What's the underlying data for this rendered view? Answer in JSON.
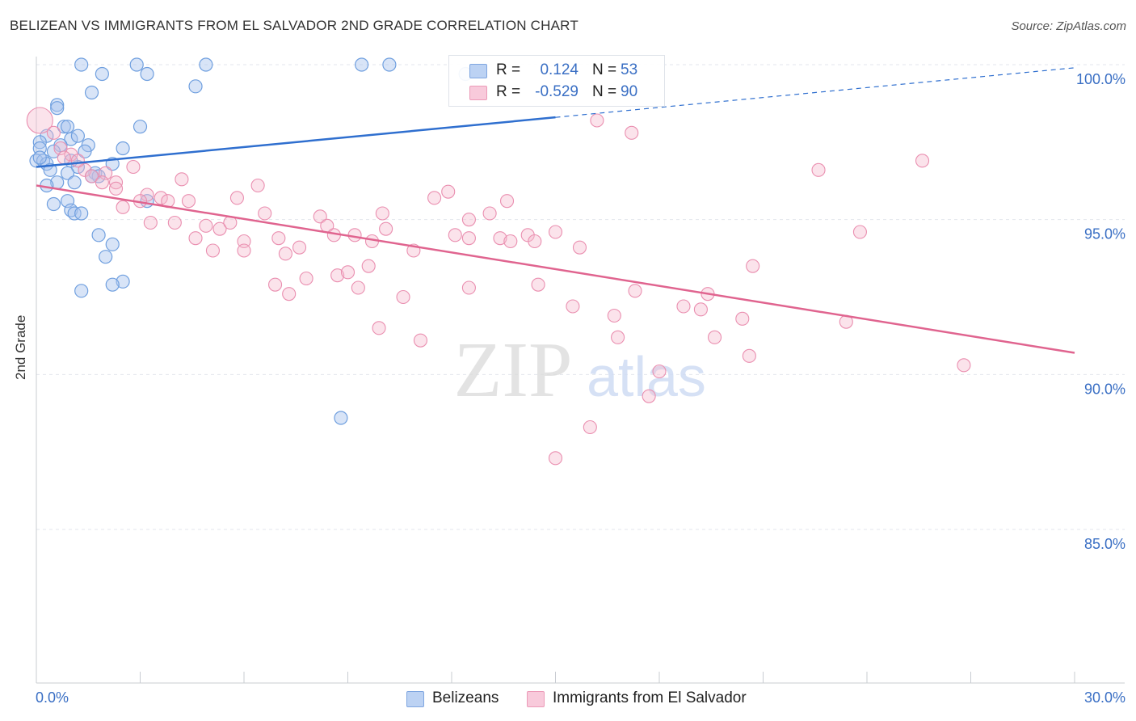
{
  "title": "BELIZEAN VS IMMIGRANTS FROM EL SALVADOR 2ND GRADE CORRELATION CHART",
  "source": "Source: ZipAtlas.com",
  "watermark": {
    "zip": "ZIP",
    "atlas": "atlas"
  },
  "legend": {
    "rows": [
      {
        "r_label": "R =",
        "r_value": "0.124",
        "n_label": "N =",
        "n_value": "53",
        "color": "#a9c4ee"
      },
      {
        "r_label": "R =",
        "r_value": "-0.529",
        "n_label": "N =",
        "n_value": "90",
        "color": "#f5b9cd"
      }
    ]
  },
  "bottom_legend": [
    {
      "label": "Belizeans",
      "color": "#a9c4ee"
    },
    {
      "label": "Immigrants from El Salvador",
      "color": "#f5b9cd"
    }
  ],
  "chart_data": {
    "type": "scatter",
    "title": "BELIZEAN VS IMMIGRANTS FROM EL SALVADOR 2ND GRADE CORRELATION CHART",
    "xlabel": "",
    "ylabel": "2nd Grade",
    "xlim": [
      0,
      30
    ],
    "ylim": [
      80.3,
      100.6
    ],
    "x_tick_labels": [
      "0.0%",
      "30.0%"
    ],
    "y_ticks": [
      85,
      90,
      95,
      100
    ],
    "y_tick_labels": [
      "85.0%",
      "90.0%",
      "95.0%",
      "100.0%"
    ],
    "grid": true,
    "colors": {
      "blue": "#6f9fdf",
      "blue_line": "#2f6fcf",
      "pink": "#ea8fb0",
      "pink_line": "#e0648f",
      "tick_label": "#3a6fc4"
    },
    "series": [
      {
        "name": "Belizeans",
        "trend": {
          "x0": 0.0,
          "y0": 96.7,
          "x1": 15.0,
          "y1": 98.3,
          "dashed_to_x": 30.0,
          "dashed_to_y": 99.9
        },
        "points": [
          [
            1.3,
            100.0
          ],
          [
            1.9,
            99.7
          ],
          [
            2.9,
            100.0
          ],
          [
            4.9,
            100.0
          ],
          [
            3.2,
            99.7
          ],
          [
            9.4,
            100.0
          ],
          [
            10.2,
            100.0
          ],
          [
            12.4,
            99.7
          ],
          [
            4.6,
            99.3
          ],
          [
            1.6,
            99.1
          ],
          [
            0.6,
            98.7
          ],
          [
            0.6,
            98.6
          ],
          [
            0.8,
            98.0
          ],
          [
            0.9,
            98.0
          ],
          [
            3.0,
            98.0
          ],
          [
            0.3,
            97.7
          ],
          [
            1.0,
            97.6
          ],
          [
            1.2,
            97.7
          ],
          [
            0.1,
            97.5
          ],
          [
            0.7,
            97.4
          ],
          [
            1.5,
            97.4
          ],
          [
            2.5,
            97.3
          ],
          [
            0.1,
            97.3
          ],
          [
            1.4,
            97.2
          ],
          [
            0.0,
            96.9
          ],
          [
            0.2,
            96.9
          ],
          [
            0.3,
            96.8
          ],
          [
            2.2,
            96.8
          ],
          [
            1.2,
            96.7
          ],
          [
            0.4,
            96.6
          ],
          [
            0.9,
            96.5
          ],
          [
            1.7,
            96.5
          ],
          [
            1.8,
            96.4
          ],
          [
            1.6,
            96.4
          ],
          [
            1.1,
            96.2
          ],
          [
            0.6,
            96.2
          ],
          [
            0.3,
            96.1
          ],
          [
            3.2,
            95.6
          ],
          [
            0.9,
            95.6
          ],
          [
            0.5,
            95.5
          ],
          [
            1.0,
            95.3
          ],
          [
            1.1,
            95.2
          ],
          [
            1.3,
            95.2
          ],
          [
            1.8,
            94.5
          ],
          [
            2.2,
            94.2
          ],
          [
            2.0,
            93.8
          ],
          [
            2.5,
            93.0
          ],
          [
            2.2,
            92.9
          ],
          [
            1.3,
            92.7
          ],
          [
            8.8,
            88.6
          ],
          [
            0.1,
            97.0
          ],
          [
            0.5,
            97.2
          ],
          [
            1.0,
            96.9
          ]
        ]
      },
      {
        "name": "Immigrants from El Salvador",
        "trend": {
          "x0": 0.0,
          "y0": 96.1,
          "x1": 30.0,
          "y1": 90.7
        },
        "points": [
          [
            0.1,
            98.2
          ],
          [
            0.5,
            97.8
          ],
          [
            1.0,
            97.1
          ],
          [
            0.7,
            97.3
          ],
          [
            1.4,
            96.6
          ],
          [
            1.6,
            96.4
          ],
          [
            2.0,
            96.5
          ],
          [
            2.8,
            96.7
          ],
          [
            1.9,
            96.2
          ],
          [
            2.3,
            96.2
          ],
          [
            4.2,
            96.3
          ],
          [
            6.4,
            96.1
          ],
          [
            3.2,
            95.8
          ],
          [
            3.6,
            95.7
          ],
          [
            3.8,
            95.6
          ],
          [
            4.4,
            95.6
          ],
          [
            5.8,
            95.7
          ],
          [
            3.0,
            95.6
          ],
          [
            2.5,
            95.4
          ],
          [
            11.5,
            95.7
          ],
          [
            11.9,
            95.9
          ],
          [
            13.6,
            95.6
          ],
          [
            6.6,
            95.2
          ],
          [
            8.2,
            95.1
          ],
          [
            10.0,
            95.2
          ],
          [
            12.5,
            95.0
          ],
          [
            13.1,
            95.2
          ],
          [
            3.3,
            94.9
          ],
          [
            4.0,
            94.9
          ],
          [
            4.9,
            94.8
          ],
          [
            5.3,
            94.7
          ],
          [
            5.6,
            94.9
          ],
          [
            8.4,
            94.8
          ],
          [
            10.1,
            94.7
          ],
          [
            15.0,
            94.6
          ],
          [
            9.2,
            94.5
          ],
          [
            12.1,
            94.5
          ],
          [
            12.5,
            94.4
          ],
          [
            13.4,
            94.4
          ],
          [
            14.2,
            94.5
          ],
          [
            13.7,
            94.3
          ],
          [
            4.6,
            94.4
          ],
          [
            6.0,
            94.3
          ],
          [
            7.0,
            94.4
          ],
          [
            9.7,
            94.3
          ],
          [
            7.6,
            94.1
          ],
          [
            8.6,
            94.5
          ],
          [
            5.1,
            94.0
          ],
          [
            6.0,
            94.0
          ],
          [
            7.2,
            93.9
          ],
          [
            10.9,
            94.0
          ],
          [
            15.7,
            94.1
          ],
          [
            14.4,
            94.3
          ],
          [
            9.6,
            93.5
          ],
          [
            8.7,
            93.2
          ],
          [
            9.0,
            93.3
          ],
          [
            7.8,
            93.1
          ],
          [
            6.9,
            92.9
          ],
          [
            9.3,
            92.8
          ],
          [
            12.5,
            92.8
          ],
          [
            14.5,
            92.9
          ],
          [
            7.3,
            92.6
          ],
          [
            10.6,
            92.5
          ],
          [
            17.3,
            92.7
          ],
          [
            19.4,
            92.6
          ],
          [
            15.5,
            92.2
          ],
          [
            18.7,
            92.2
          ],
          [
            19.2,
            92.1
          ],
          [
            16.7,
            91.9
          ],
          [
            20.4,
            91.8
          ],
          [
            23.4,
            91.7
          ],
          [
            9.9,
            91.5
          ],
          [
            11.1,
            91.1
          ],
          [
            16.8,
            91.2
          ],
          [
            19.6,
            91.2
          ],
          [
            20.6,
            90.6
          ],
          [
            18.0,
            90.1
          ],
          [
            26.8,
            90.3
          ],
          [
            17.7,
            89.3
          ],
          [
            16.0,
            88.3
          ],
          [
            15.0,
            87.3
          ],
          [
            16.2,
            98.2
          ],
          [
            17.2,
            97.8
          ],
          [
            25.6,
            96.9
          ],
          [
            22.6,
            96.6
          ],
          [
            23.8,
            94.6
          ],
          [
            20.7,
            93.5
          ],
          [
            2.3,
            96.0
          ],
          [
            1.2,
            96.9
          ],
          [
            0.8,
            97.0
          ]
        ]
      }
    ]
  }
}
